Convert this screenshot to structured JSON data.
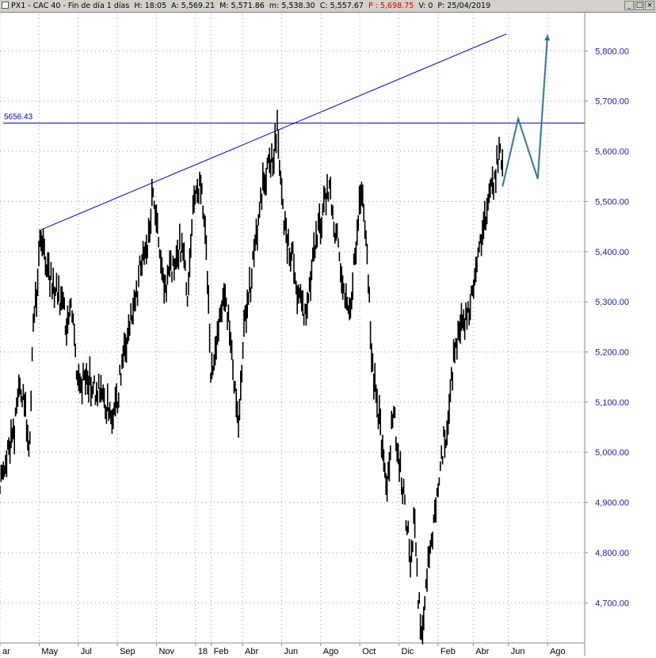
{
  "header": {
    "symbol": "PX1 - CAC 40 - Fin de día 1 días",
    "hour_label": "H:",
    "hour": "18:05",
    "open_label": "A:",
    "open": "5,569.21",
    "high_label": "M:",
    "high": "5,571.86",
    "low_label": "m:",
    "low": "5,538.30",
    "close_label": "C:",
    "close": "5,557.67",
    "price_label": "P :",
    "price": "5,698.75",
    "volume_label": "V:",
    "volume": "0",
    "date_label": "P:",
    "date": "25/04/2019"
  },
  "window_buttons": [
    "_",
    "□",
    "×"
  ],
  "colors": {
    "price": "#000000",
    "trend": "#0000c8",
    "projection": "#2a6e86",
    "axis_text": "#1a1a9a",
    "grid": "#9a9a9a"
  },
  "chart_data": {
    "type": "ohlc",
    "y_ticks": [
      {
        "v": 4700,
        "label": "4,700.00"
      },
      {
        "v": 4800,
        "label": "4,800.00"
      },
      {
        "v": 4900,
        "label": "4,900.00"
      },
      {
        "v": 5000,
        "label": "5,000.00"
      },
      {
        "v": 5100,
        "label": "5,100.00"
      },
      {
        "v": 5200,
        "label": "5,200.00"
      },
      {
        "v": 5300,
        "label": "5,300.00"
      },
      {
        "v": 5400,
        "label": "5,400.00"
      },
      {
        "v": 5500,
        "label": "5,500.00"
      },
      {
        "v": 5600,
        "label": "5,600.00"
      },
      {
        "v": 5700,
        "label": "5,700.00"
      },
      {
        "v": 5800,
        "label": "5,800.00"
      }
    ],
    "ylim": [
      4620,
      5870
    ],
    "x_ticks": [
      {
        "t": 0,
        "label": "ar"
      },
      {
        "t": 2,
        "label": "May"
      },
      {
        "t": 4,
        "label": "Jul"
      },
      {
        "t": 6,
        "label": "Sep"
      },
      {
        "t": 8,
        "label": "Nov"
      },
      {
        "t": 10,
        "label": "18"
      },
      {
        "t": 10.8,
        "label": "Feb"
      },
      {
        "t": 12.4,
        "label": "Abr"
      },
      {
        "t": 14.4,
        "label": "Jun"
      },
      {
        "t": 16.4,
        "label": "Ago"
      },
      {
        "t": 18.4,
        "label": "Oct"
      },
      {
        "t": 20.4,
        "label": "Dic"
      },
      {
        "t": 22.4,
        "label": "Feb"
      },
      {
        "t": 24.2,
        "label": "Abr"
      },
      {
        "t": 26,
        "label": "Jun"
      },
      {
        "t": 28,
        "label": "Ago"
      }
    ],
    "xlim": [
      0,
      29.9
    ],
    "price_path": [
      [
        0.0,
        4950
      ],
      [
        0.4,
        5010
      ],
      [
        0.7,
        5030
      ],
      [
        0.9,
        5110
      ],
      [
        1.2,
        5120
      ],
      [
        1.5,
        4990
      ],
      [
        1.7,
        5260
      ],
      [
        1.9,
        5330
      ],
      [
        2.0,
        5430
      ],
      [
        2.2,
        5420
      ],
      [
        2.5,
        5360
      ],
      [
        2.8,
        5330
      ],
      [
        3.1,
        5300
      ],
      [
        3.4,
        5260
      ],
      [
        3.7,
        5290
      ],
      [
        3.9,
        5180
      ],
      [
        4.2,
        5140
      ],
      [
        4.6,
        5150
      ],
      [
        4.9,
        5110
      ],
      [
        5.2,
        5130
      ],
      [
        5.5,
        5090
      ],
      [
        5.8,
        5060
      ],
      [
        6.0,
        5100
      ],
      [
        6.3,
        5200
      ],
      [
        6.6,
        5240
      ],
      [
        6.9,
        5300
      ],
      [
        7.2,
        5370
      ],
      [
        7.5,
        5390
      ],
      [
        7.8,
        5520
      ],
      [
        8.1,
        5440
      ],
      [
        8.4,
        5310
      ],
      [
        8.7,
        5360
      ],
      [
        9.0,
        5390
      ],
      [
        9.3,
        5420
      ],
      [
        9.6,
        5300
      ],
      [
        9.9,
        5510
      ],
      [
        10.2,
        5540
      ],
      [
        10.5,
        5450
      ],
      [
        10.8,
        5150
      ],
      [
        11.1,
        5230
      ],
      [
        11.4,
        5300
      ],
      [
        11.7,
        5260
      ],
      [
        12.0,
        5120
      ],
      [
        12.2,
        5060
      ],
      [
        12.5,
        5260
      ],
      [
        12.8,
        5330
      ],
      [
        13.1,
        5420
      ],
      [
        13.4,
        5520
      ],
      [
        13.7,
        5560
      ],
      [
        14.0,
        5590
      ],
      [
        14.2,
        5660
      ],
      [
        14.4,
        5500
      ],
      [
        14.7,
        5420
      ],
      [
        15.0,
        5380
      ],
      [
        15.3,
        5300
      ],
      [
        15.6,
        5270
      ],
      [
        15.9,
        5350
      ],
      [
        16.2,
        5430
      ],
      [
        16.5,
        5480
      ],
      [
        16.8,
        5520
      ],
      [
        17.0,
        5490
      ],
      [
        17.3,
        5400
      ],
      [
        17.6,
        5310
      ],
      [
        17.9,
        5260
      ],
      [
        18.2,
        5420
      ],
      [
        18.5,
        5530
      ],
      [
        18.8,
        5390
      ],
      [
        19.0,
        5180
      ],
      [
        19.3,
        5090
      ],
      [
        19.6,
        5000
      ],
      [
        19.8,
        4920
      ],
      [
        20.1,
        5090
      ],
      [
        20.4,
        4980
      ],
      [
        20.7,
        4900
      ],
      [
        21.0,
        4780
      ],
      [
        21.2,
        4880
      ],
      [
        21.4,
        4700
      ],
      [
        21.6,
        4650
      ],
      [
        21.8,
        4760
      ],
      [
        22.0,
        4800
      ],
      [
        22.3,
        4880
      ],
      [
        22.6,
        5000
      ],
      [
        22.9,
        5060
      ],
      [
        23.2,
        5180
      ],
      [
        23.5,
        5250
      ],
      [
        23.8,
        5270
      ],
      [
        24.1,
        5300
      ],
      [
        24.4,
        5380
      ],
      [
        24.7,
        5440
      ],
      [
        25.0,
        5510
      ],
      [
        25.3,
        5550
      ],
      [
        25.5,
        5600
      ],
      [
        25.7,
        5560
      ]
    ],
    "trend_line": [
      [
        2.0,
        5442
      ],
      [
        25.9,
        5834
      ]
    ],
    "horizontal_line": {
      "y": 5656.43,
      "label": "5656.43"
    },
    "projection": [
      [
        25.7,
        5530
      ],
      [
        26.5,
        5665
      ],
      [
        27.5,
        5545
      ],
      [
        28.0,
        5832
      ]
    ]
  }
}
